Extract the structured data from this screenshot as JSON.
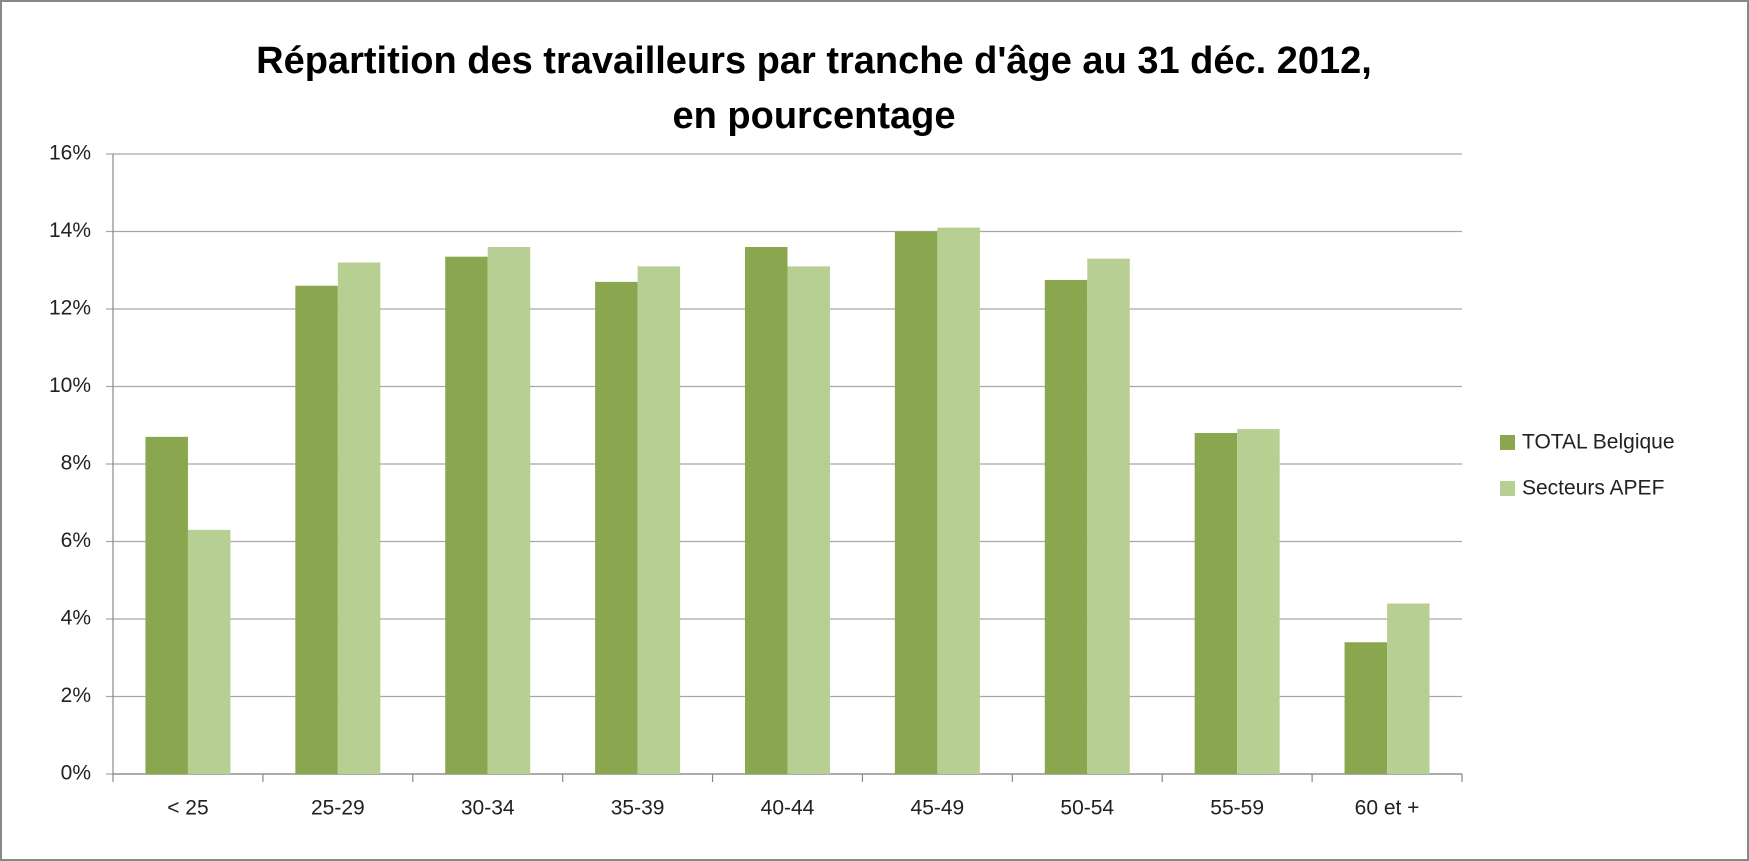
{
  "chart_data": {
    "type": "bar",
    "title": [
      "Répartition des travailleurs par tranche d'âge au 31 déc. 2012,",
      "en pourcentage"
    ],
    "categories": [
      "< 25",
      "25-29",
      "30-34",
      "35-39",
      "40-44",
      "45-49",
      "50-54",
      "55-59",
      "60 et +"
    ],
    "series": [
      {
        "name": "TOTAL Belgique",
        "color": "#8aa64e",
        "values": [
          8.7,
          12.6,
          13.35,
          12.7,
          13.6,
          14.0,
          12.75,
          8.8,
          3.4
        ]
      },
      {
        "name": "Secteurs APEF",
        "color": "#b8cf94",
        "values": [
          6.3,
          13.2,
          13.6,
          13.1,
          13.1,
          14.1,
          13.3,
          8.9,
          4.4
        ]
      }
    ],
    "ylim": [
      0,
      16
    ],
    "yticks": [
      {
        "value": 0,
        "label": "0%"
      },
      {
        "value": 2,
        "label": "2%"
      },
      {
        "value": 4,
        "label": "4%"
      },
      {
        "value": 6,
        "label": "6%"
      },
      {
        "value": 8,
        "label": "8%"
      },
      {
        "value": 10,
        "label": "10%"
      },
      {
        "value": 12,
        "label": "12%"
      },
      {
        "value": 14,
        "label": "14%"
      },
      {
        "value": 16,
        "label": "16%"
      }
    ],
    "grid": true,
    "legend": "right"
  }
}
